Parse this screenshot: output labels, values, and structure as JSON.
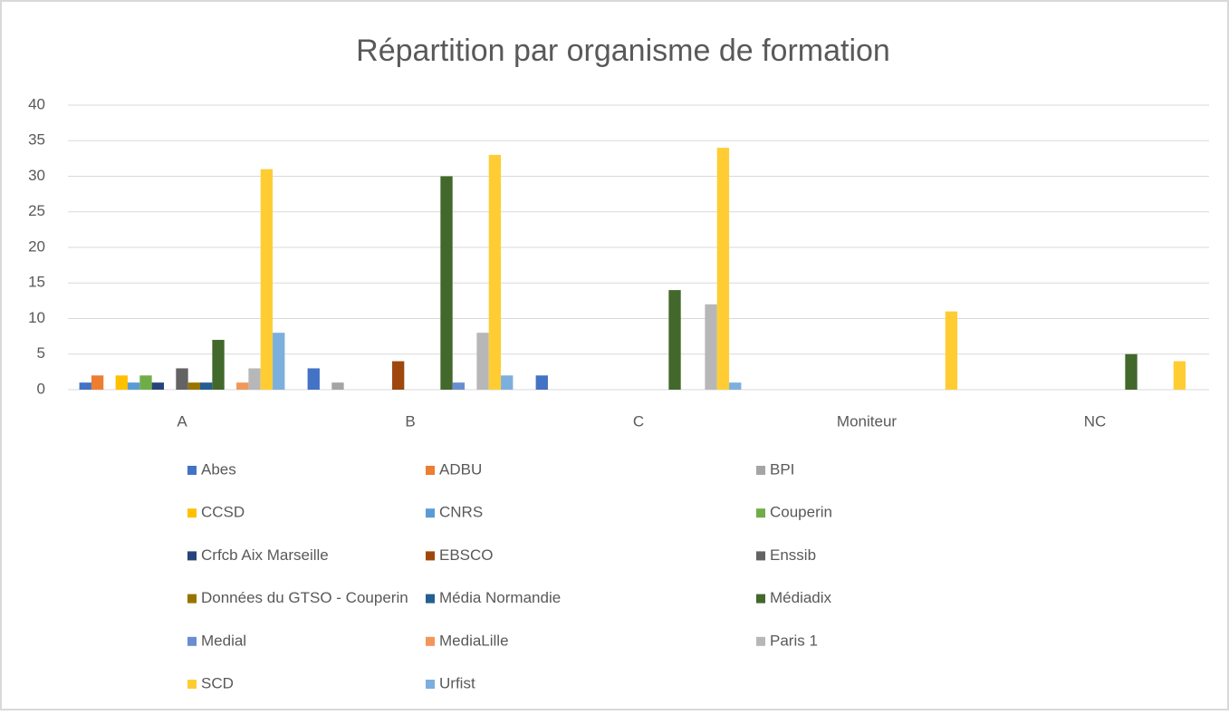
{
  "chart_data": {
    "type": "bar",
    "title": "Répartition par organisme de formation",
    "categories": [
      "A",
      "B",
      "C",
      "Moniteur",
      "NC"
    ],
    "ylim": [
      0,
      40
    ],
    "yticks": [
      0,
      5,
      10,
      15,
      20,
      25,
      30,
      35,
      40
    ],
    "grid": true,
    "legend": "bottom",
    "series": [
      {
        "name": "Abes",
        "color": "#4472c4",
        "values": [
          1,
          3,
          2,
          0,
          0
        ]
      },
      {
        "name": "ADBU",
        "color": "#ed7d31",
        "values": [
          2,
          0,
          0,
          0,
          0
        ]
      },
      {
        "name": "BPI",
        "color": "#a5a5a5",
        "values": [
          0,
          1,
          0,
          0,
          0
        ]
      },
      {
        "name": "CCSD",
        "color": "#ffc000",
        "values": [
          2,
          0,
          0,
          0,
          0
        ]
      },
      {
        "name": "CNRS",
        "color": "#5b9bd5",
        "values": [
          1,
          0,
          0,
          0,
          0
        ]
      },
      {
        "name": "Couperin",
        "color": "#70ad47",
        "values": [
          2,
          0,
          0,
          0,
          0
        ]
      },
      {
        "name": "Crfcb Aix Marseille",
        "color": "#264478",
        "values": [
          1,
          0,
          0,
          0,
          0
        ]
      },
      {
        "name": "EBSCO",
        "color": "#9e480e",
        "values": [
          0,
          4,
          0,
          0,
          0
        ]
      },
      {
        "name": "Enssib",
        "color": "#636363",
        "values": [
          3,
          0,
          0,
          0,
          0
        ]
      },
      {
        "name": "Données du GTSO - Couperin",
        "color": "#997300",
        "values": [
          1,
          0,
          0,
          0,
          0
        ]
      },
      {
        "name": "Média Normandie",
        "color": "#255e91",
        "values": [
          1,
          0,
          0,
          0,
          0
        ]
      },
      {
        "name": "Médiadix",
        "color": "#43682b",
        "values": [
          7,
          30,
          14,
          0,
          5
        ]
      },
      {
        "name": "Medial",
        "color": "#698ed0",
        "values": [
          0,
          1,
          0,
          0,
          0
        ]
      },
      {
        "name": "MediaLille",
        "color": "#f1975a",
        "values": [
          1,
          0,
          0,
          0,
          0
        ]
      },
      {
        "name": "Paris 1",
        "color": "#b7b7b7",
        "values": [
          3,
          8,
          12,
          0,
          0
        ]
      },
      {
        "name": "SCD",
        "color": "#ffcd33",
        "values": [
          31,
          33,
          34,
          11,
          4
        ]
      },
      {
        "name": "Urfist",
        "color": "#7cafdd",
        "values": [
          8,
          2,
          1,
          0,
          0
        ]
      }
    ]
  }
}
